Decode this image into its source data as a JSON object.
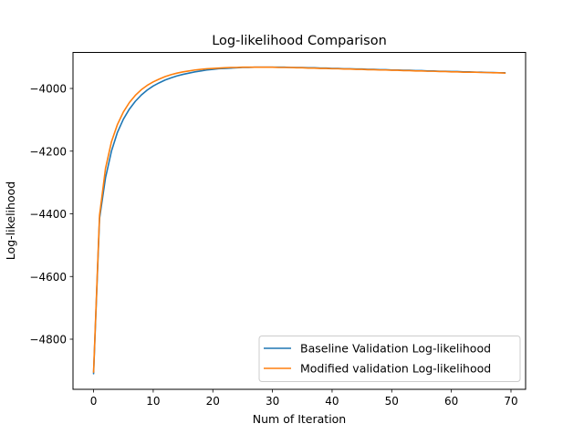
{
  "chart_data": {
    "type": "line",
    "title": "Log-likelihood Comparison",
    "xlabel": "Num of Iteration",
    "ylabel": "Log-likelihood",
    "xlim": [
      -3.45,
      72.45
    ],
    "ylim": [
      -4960,
      -3885
    ],
    "xticks": [
      0,
      10,
      20,
      30,
      40,
      50,
      60,
      70
    ],
    "xtick_labels": [
      "0",
      "10",
      "20",
      "30",
      "40",
      "50",
      "60",
      "70"
    ],
    "yticks": [
      -4800,
      -4600,
      -4400,
      -4200,
      -4000
    ],
    "ytick_labels": [
      "−4800",
      "−4600",
      "−4400",
      "−4200",
      "−4000"
    ],
    "grid": false,
    "legend_position": "lower-right",
    "x": [
      0,
      1,
      2,
      3,
      4,
      5,
      6,
      7,
      8,
      9,
      10,
      11,
      12,
      13,
      14,
      15,
      16,
      17,
      18,
      19,
      20,
      21,
      22,
      23,
      24,
      25,
      26,
      27,
      28,
      29,
      30,
      31,
      32,
      33,
      34,
      35,
      36,
      37,
      38,
      39,
      40,
      41,
      42,
      43,
      44,
      45,
      46,
      47,
      48,
      49,
      50,
      51,
      52,
      53,
      54,
      55,
      56,
      57,
      58,
      59,
      60,
      61,
      62,
      63,
      64,
      65,
      66,
      67,
      68,
      69
    ],
    "series": [
      {
        "name": "Baseline Validation Log-likelihood",
        "color": "#1f77b4",
        "values": [
          -4910,
          -4415,
          -4285,
          -4200,
          -4140,
          -4098,
          -4066,
          -4041,
          -4021,
          -4005,
          -3992,
          -3982,
          -3973,
          -3966,
          -3960,
          -3955,
          -3951,
          -3947,
          -3944,
          -3941,
          -3939,
          -3937,
          -3936,
          -3935,
          -3934,
          -3933,
          -3933,
          -3932,
          -3932,
          -3932,
          -3932,
          -3932,
          -3932,
          -3933,
          -3933,
          -3933,
          -3934,
          -3934,
          -3935,
          -3935,
          -3936,
          -3936,
          -3937,
          -3937,
          -3938,
          -3938,
          -3939,
          -3939,
          -3940,
          -3940,
          -3941,
          -3941,
          -3942,
          -3942,
          -3943,
          -3943,
          -3944,
          -3944,
          -3945,
          -3945,
          -3946,
          -3946,
          -3947,
          -3947,
          -3948,
          -3948,
          -3949,
          -3949,
          -3950,
          -3950
        ]
      },
      {
        "name": "Modified validation Log-likelihood",
        "color": "#ff7f0e",
        "values": [
          -4905,
          -4405,
          -4255,
          -4170,
          -4115,
          -4075,
          -4045,
          -4022,
          -4004,
          -3990,
          -3979,
          -3970,
          -3962,
          -3956,
          -3951,
          -3947,
          -3944,
          -3941,
          -3939,
          -3937,
          -3936,
          -3935,
          -3934,
          -3933,
          -3933,
          -3932,
          -3932,
          -3932,
          -3932,
          -3932,
          -3932,
          -3933,
          -3933,
          -3933,
          -3934,
          -3934,
          -3935,
          -3935,
          -3936,
          -3936,
          -3937,
          -3937,
          -3938,
          -3938,
          -3939,
          -3939,
          -3940,
          -3940,
          -3941,
          -3941,
          -3942,
          -3942,
          -3943,
          -3943,
          -3944,
          -3944,
          -3945,
          -3945,
          -3946,
          -3946,
          -3947,
          -3947,
          -3948,
          -3948,
          -3948,
          -3949,
          -3949,
          -3950,
          -3950,
          -3951
        ]
      }
    ]
  }
}
